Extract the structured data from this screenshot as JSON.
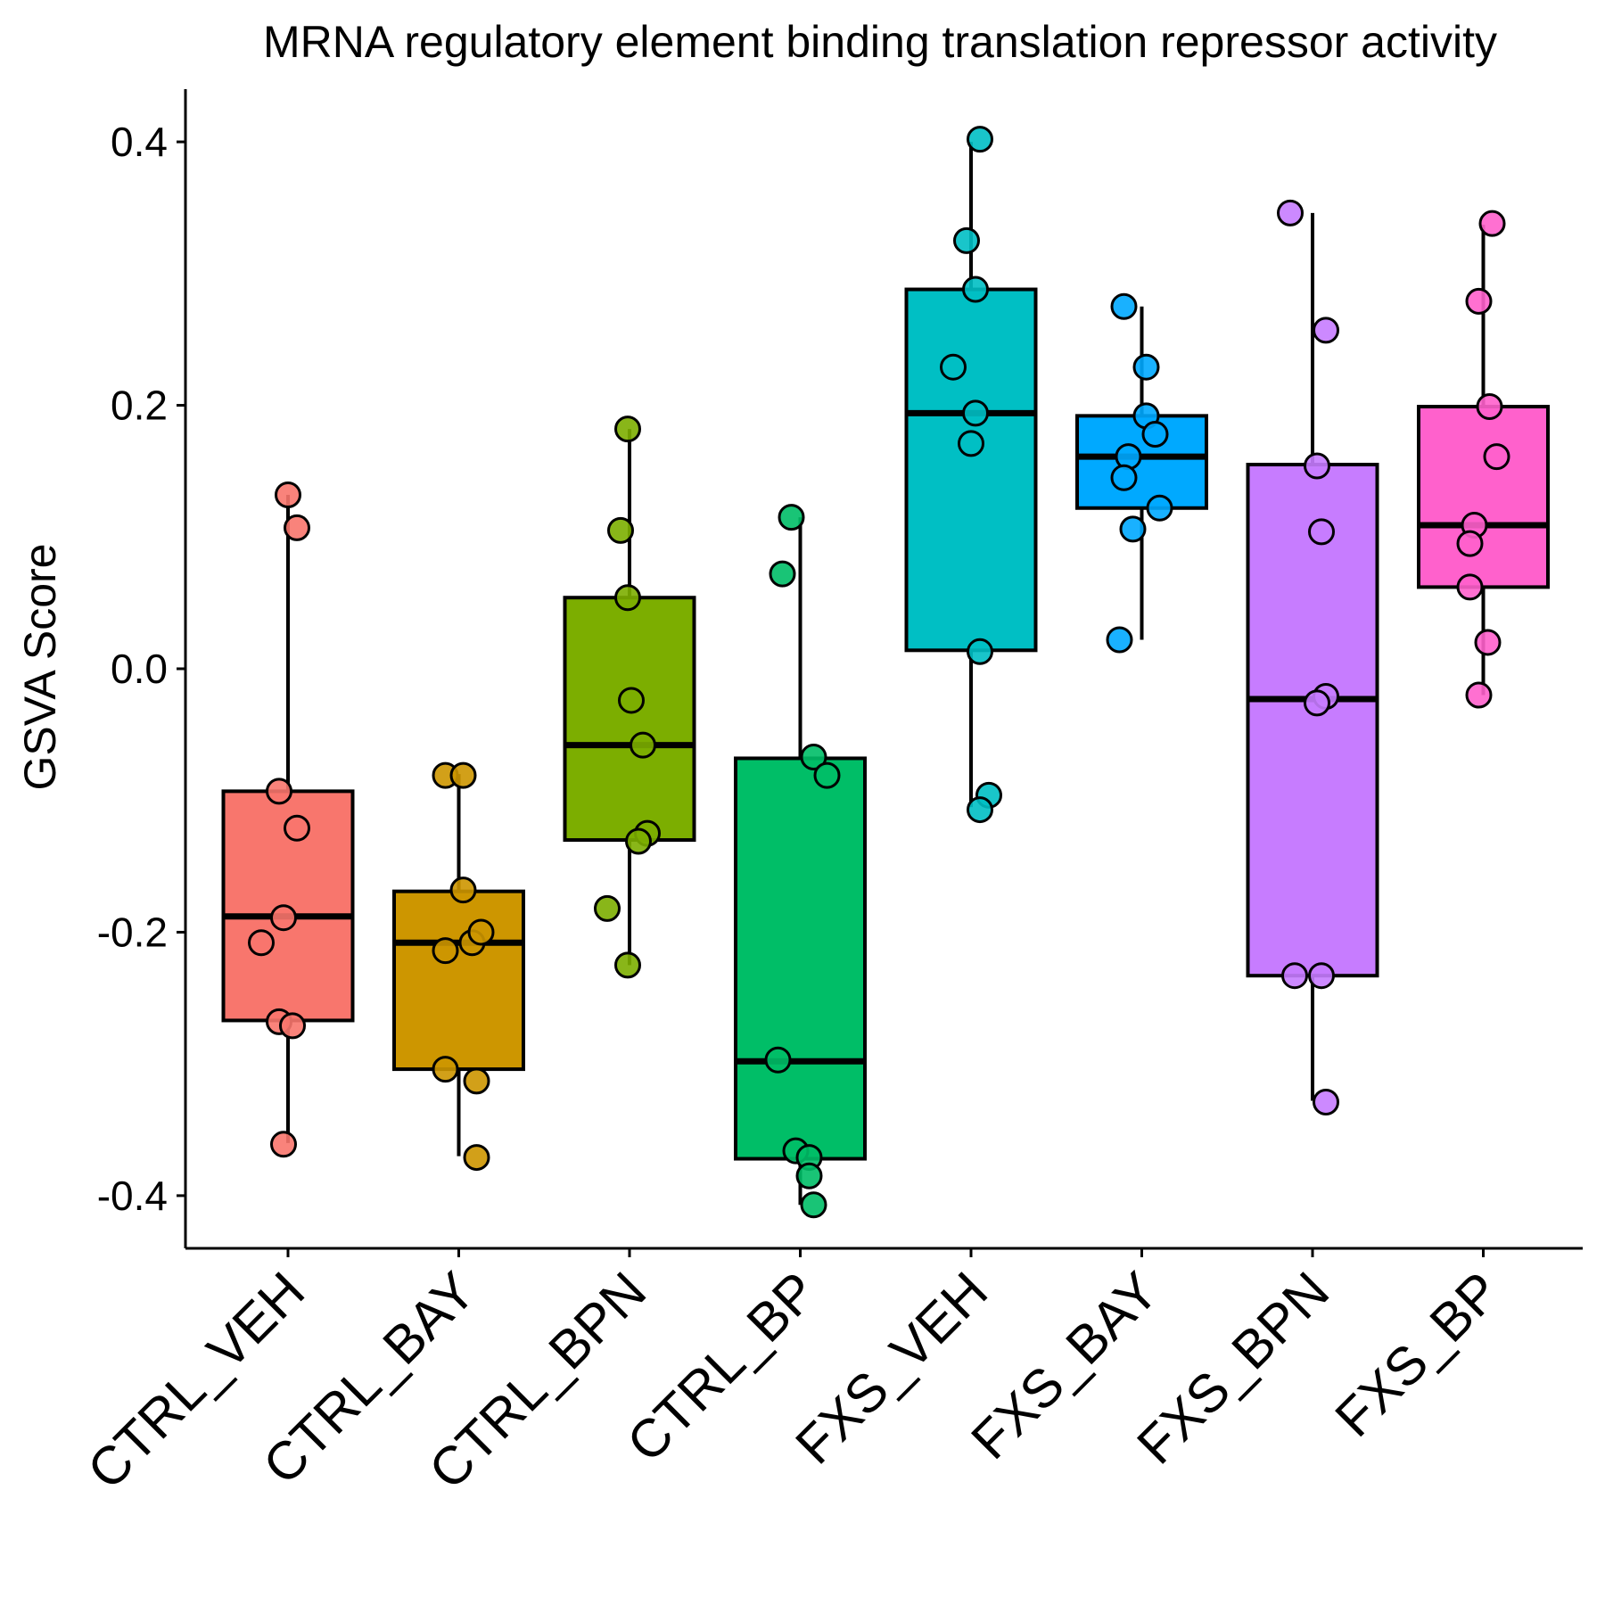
{
  "chart_data": {
    "type": "box",
    "title": "MRNA regulatory element binding translation repressor activity",
    "xlabel": "",
    "ylabel": "GSVA Score",
    "ylim": [
      -0.44,
      0.44
    ],
    "yticks": [
      -0.4,
      -0.2,
      0.0,
      0.2,
      0.4
    ],
    "ytick_labels": [
      "-0.4",
      "-0.2",
      "0.0",
      "0.2",
      "0.4"
    ],
    "grid": false,
    "legend": "none",
    "categories": [
      "CTRL_VEH",
      "CTRL_BAY",
      "CTRL_BPN",
      "CTRL_BP",
      "FXS_VEH",
      "FXS_BAY",
      "FXS_BPN",
      "FXS_BP"
    ],
    "series": [
      {
        "category": "CTRL_VEH",
        "color": "#F8766D",
        "whisker_low": -0.36,
        "q1": -0.267,
        "median": -0.188,
        "q3": -0.093,
        "whisker_high": 0.132,
        "points": [
          {
            "jitter": 0.0,
            "y": 0.132
          },
          {
            "jitter": 0.1,
            "y": 0.107
          },
          {
            "jitter": -0.1,
            "y": -0.093
          },
          {
            "jitter": 0.1,
            "y": -0.121
          },
          {
            "jitter": -0.05,
            "y": -0.189
          },
          {
            "jitter": -0.3,
            "y": -0.208
          },
          {
            "jitter": -0.1,
            "y": -0.268
          },
          {
            "jitter": 0.05,
            "y": -0.271
          },
          {
            "jitter": -0.05,
            "y": -0.361
          }
        ]
      },
      {
        "category": "CTRL_BAY",
        "color": "#CD9600",
        "whisker_low": -0.37,
        "q1": -0.304,
        "median": -0.208,
        "q3": -0.169,
        "whisker_high": -0.08,
        "points": [
          {
            "jitter": -0.15,
            "y": -0.081
          },
          {
            "jitter": 0.05,
            "y": -0.081
          },
          {
            "jitter": 0.05,
            "y": -0.168
          },
          {
            "jitter": -0.15,
            "y": -0.214
          },
          {
            "jitter": 0.15,
            "y": -0.208
          },
          {
            "jitter": 0.25,
            "y": -0.2
          },
          {
            "jitter": -0.15,
            "y": -0.304
          },
          {
            "jitter": 0.2,
            "y": -0.313
          },
          {
            "jitter": 0.2,
            "y": -0.371
          }
        ]
      },
      {
        "category": "CTRL_BPN",
        "color": "#7CAE00",
        "whisker_low": -0.225,
        "q1": -0.13,
        "median": -0.058,
        "q3": 0.054,
        "whisker_high": 0.182,
        "points": [
          {
            "jitter": -0.02,
            "y": 0.182
          },
          {
            "jitter": -0.1,
            "y": 0.105
          },
          {
            "jitter": -0.02,
            "y": 0.054
          },
          {
            "jitter": 0.02,
            "y": -0.024
          },
          {
            "jitter": 0.15,
            "y": -0.058
          },
          {
            "jitter": 0.2,
            "y": -0.125
          },
          {
            "jitter": 0.1,
            "y": -0.131
          },
          {
            "jitter": -0.25,
            "y": -0.182
          },
          {
            "jitter": -0.02,
            "y": -0.225
          }
        ]
      },
      {
        "category": "CTRL_BP",
        "color": "#00BE67",
        "whisker_low": -0.407,
        "q1": -0.372,
        "median": -0.298,
        "q3": -0.068,
        "whisker_high": 0.115,
        "points": [
          {
            "jitter": -0.1,
            "y": 0.115
          },
          {
            "jitter": -0.2,
            "y": 0.072
          },
          {
            "jitter": 0.15,
            "y": -0.067
          },
          {
            "jitter": 0.3,
            "y": -0.081
          },
          {
            "jitter": -0.25,
            "y": -0.297
          },
          {
            "jitter": -0.05,
            "y": -0.366
          },
          {
            "jitter": 0.1,
            "y": -0.371
          },
          {
            "jitter": 0.1,
            "y": -0.385
          },
          {
            "jitter": 0.15,
            "y": -0.407
          }
        ]
      },
      {
        "category": "FXS_VEH",
        "color": "#00BFC4",
        "whisker_low": -0.105,
        "q1": 0.014,
        "median": 0.194,
        "q3": 0.288,
        "whisker_high": 0.4,
        "points": [
          {
            "jitter": 0.1,
            "y": 0.402
          },
          {
            "jitter": -0.05,
            "y": 0.325
          },
          {
            "jitter": 0.05,
            "y": 0.288
          },
          {
            "jitter": -0.2,
            "y": 0.229
          },
          {
            "jitter": 0.05,
            "y": 0.194
          },
          {
            "jitter": 0.0,
            "y": 0.171
          },
          {
            "jitter": 0.1,
            "y": 0.013
          },
          {
            "jitter": 0.2,
            "y": -0.096
          },
          {
            "jitter": 0.1,
            "y": -0.107
          }
        ]
      },
      {
        "category": "FXS_BAY",
        "color": "#00A9FF",
        "whisker_low": 0.022,
        "q1": 0.122,
        "median": 0.161,
        "q3": 0.192,
        "whisker_high": 0.275,
        "points": [
          {
            "jitter": -0.2,
            "y": 0.275
          },
          {
            "jitter": 0.05,
            "y": 0.229
          },
          {
            "jitter": 0.05,
            "y": 0.192
          },
          {
            "jitter": 0.15,
            "y": 0.178
          },
          {
            "jitter": -0.15,
            "y": 0.161
          },
          {
            "jitter": -0.2,
            "y": 0.145
          },
          {
            "jitter": 0.2,
            "y": 0.122
          },
          {
            "jitter": -0.1,
            "y": 0.106
          },
          {
            "jitter": -0.25,
            "y": 0.022
          }
        ]
      },
      {
        "category": "FXS_BPN",
        "color": "#C77CFF",
        "whisker_low": -0.328,
        "q1": -0.233,
        "median": -0.023,
        "q3": 0.155,
        "whisker_high": 0.346,
        "points": [
          {
            "jitter": -0.25,
            "y": 0.346
          },
          {
            "jitter": 0.15,
            "y": 0.257
          },
          {
            "jitter": 0.05,
            "y": 0.154
          },
          {
            "jitter": 0.1,
            "y": 0.104
          },
          {
            "jitter": 0.15,
            "y": -0.021
          },
          {
            "jitter": 0.05,
            "y": -0.026
          },
          {
            "jitter": -0.2,
            "y": -0.233
          },
          {
            "jitter": 0.1,
            "y": -0.233
          },
          {
            "jitter": 0.15,
            "y": -0.329
          }
        ]
      },
      {
        "category": "FXS_BP",
        "color": "#FF61CC",
        "whisker_low": -0.02,
        "q1": 0.062,
        "median": 0.109,
        "q3": 0.199,
        "whisker_high": 0.337,
        "points": [
          {
            "jitter": 0.1,
            "y": 0.338
          },
          {
            "jitter": -0.05,
            "y": 0.279
          },
          {
            "jitter": 0.07,
            "y": 0.199
          },
          {
            "jitter": 0.15,
            "y": 0.161
          },
          {
            "jitter": -0.1,
            "y": 0.109
          },
          {
            "jitter": -0.15,
            "y": 0.095
          },
          {
            "jitter": -0.15,
            "y": 0.062
          },
          {
            "jitter": 0.05,
            "y": 0.02
          },
          {
            "jitter": -0.05,
            "y": -0.02
          }
        ]
      }
    ]
  }
}
